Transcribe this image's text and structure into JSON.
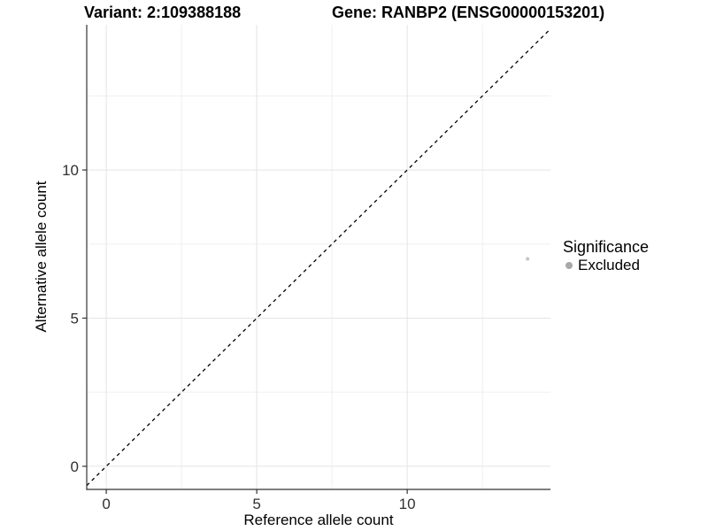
{
  "titles": {
    "variant": "Variant: 2:109388188",
    "gene": "Gene: RANBP2 (ENSG00000153201)"
  },
  "chart_data": {
    "type": "scatter",
    "title_left": "Variant: 2:109388188",
    "title_right": "Gene: RANBP2 (ENSG00000153201)",
    "xlabel": "Reference allele count",
    "ylabel": "Alternative allele count",
    "xlim": [
      -0.65,
      14.76
    ],
    "ylim": [
      -0.78,
      14.9
    ],
    "x_ticks": [
      0,
      5,
      10
    ],
    "y_ticks": [
      0,
      5,
      10
    ],
    "minor_ticks": [
      2.5,
      7.5,
      12.5
    ],
    "grid": true,
    "points": [
      {
        "x": 14,
        "y": 7,
        "significance": "Excluded",
        "color": "#c4c4c4",
        "r": 2
      }
    ],
    "identity_line": {
      "type": "y=x",
      "style": "dashed",
      "color": "#000000"
    },
    "legend": {
      "position": "right",
      "title": "Significance",
      "items": [
        {
          "label": "Excluded",
          "color": "#a8a8a8"
        }
      ]
    },
    "colors": {
      "grid_major": "#e4e4e4",
      "grid_minor": "#efefef",
      "axis": "#333333",
      "background": "#ffffff"
    }
  }
}
